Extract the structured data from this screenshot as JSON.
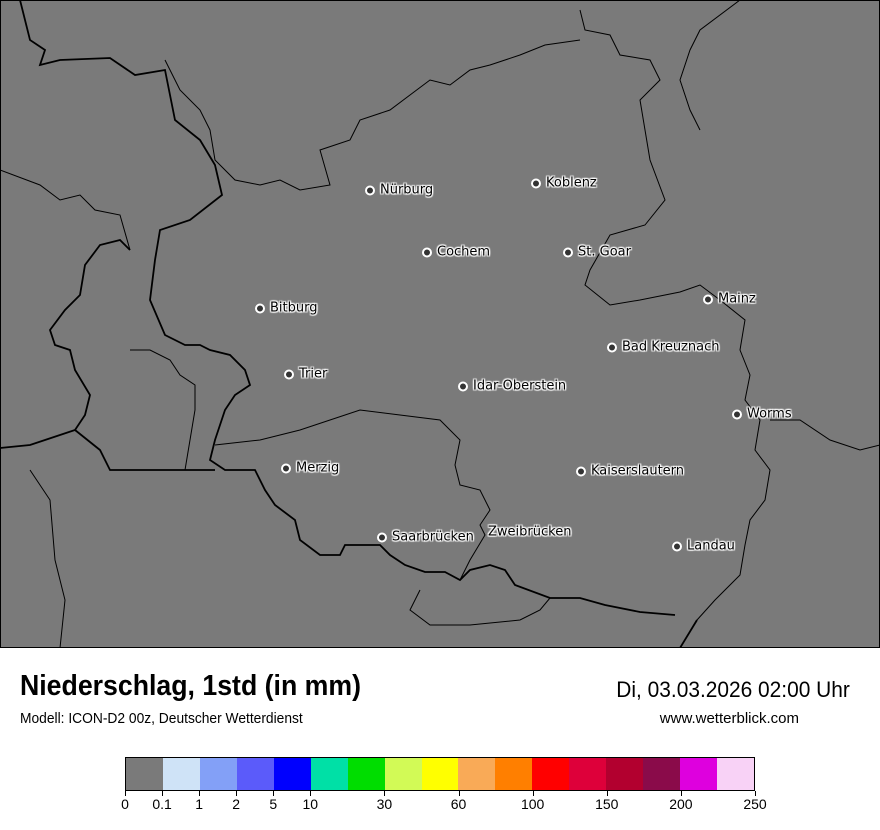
{
  "map": {
    "background_color": "#7a7a7a",
    "cities": [
      {
        "name": "Nürburg",
        "dot": true
      },
      {
        "name": "Koblenz",
        "dot": true
      },
      {
        "name": "Cochem",
        "dot": true
      },
      {
        "name": "St. Goar",
        "dot": true
      },
      {
        "name": "Bitburg",
        "dot": true
      },
      {
        "name": "Mainz",
        "dot": true
      },
      {
        "name": "Bad Kreuznach",
        "dot": true
      },
      {
        "name": "Trier",
        "dot": true
      },
      {
        "name": "Idar-Oberstein",
        "dot": true
      },
      {
        "name": "Worms",
        "dot": true
      },
      {
        "name": "Merzig",
        "dot": true
      },
      {
        "name": "Kaiserslautern",
        "dot": true
      },
      {
        "name": "Saarbrücken",
        "dot": true
      },
      {
        "name": "Zweibrücken",
        "dot": false
      },
      {
        "name": "Landau",
        "dot": true
      }
    ]
  },
  "header": {
    "title": "Niederschlag, 1std (in mm)",
    "subtitle": "Modell: ICON-D2 00z, Deutscher Wetterdienst",
    "datetime": "Di, 03.03.2026 02:00 Uhr",
    "website": "www.wetterblick.com"
  },
  "legend": {
    "colors": [
      "#7a7a7a",
      "#cfe3f7",
      "#83a0f7",
      "#5b5bfa",
      "#0000fe",
      "#00e0a6",
      "#00dd00",
      "#d2fa56",
      "#ffff00",
      "#f9aa57",
      "#ff7f00",
      "#ff0000",
      "#de003a",
      "#b2002f",
      "#8a0b4a",
      "#de00de",
      "#f8d2f6"
    ],
    "ticks": [
      {
        "label": "0",
        "index": 0
      },
      {
        "label": "0.1",
        "index": 1
      },
      {
        "label": "1",
        "index": 2
      },
      {
        "label": "2",
        "index": 3
      },
      {
        "label": "5",
        "index": 4
      },
      {
        "label": "10",
        "index": 5
      },
      {
        "label": "30",
        "index": 7
      },
      {
        "label": "60",
        "index": 9
      },
      {
        "label": "100",
        "index": 11
      },
      {
        "label": "150",
        "index": 13
      },
      {
        "label": "200",
        "index": 15
      },
      {
        "label": "250",
        "index": 17
      }
    ]
  }
}
